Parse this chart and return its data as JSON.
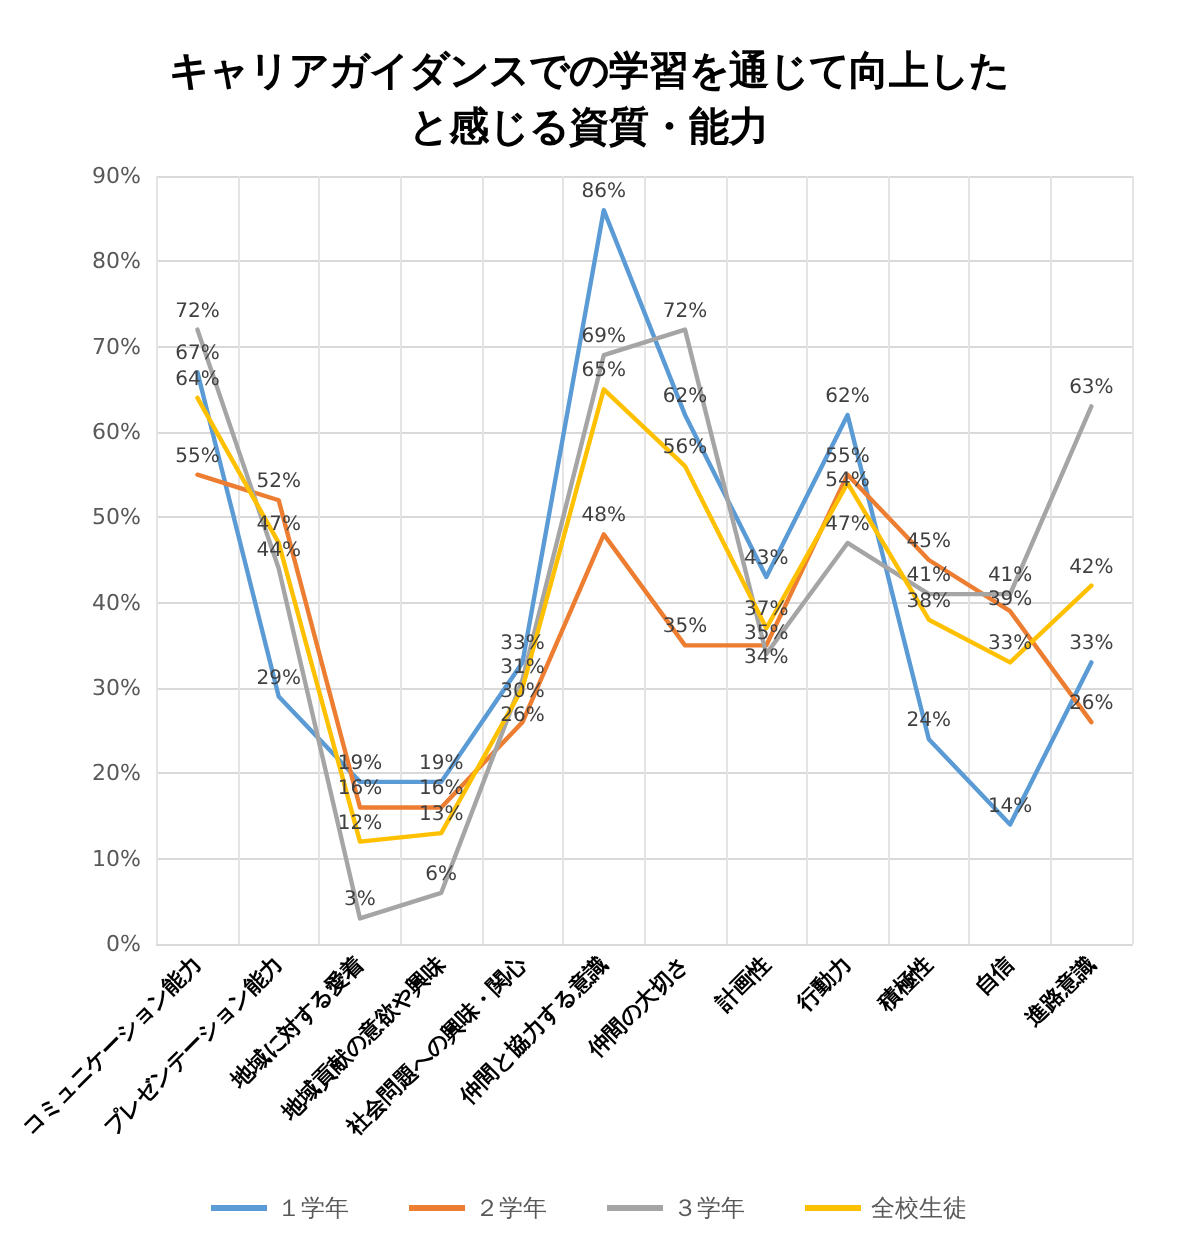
{
  "chart_data": {
    "type": "line",
    "title": "キャリアガイダンスでの学習を通じて向上したと感じる資質・能力",
    "categories": [
      "コミュニケーション能力",
      "プレゼンテーション能力",
      "地域に対する愛着",
      "地域貢献の意欲や興味",
      "社会問題への興味・関心",
      "仲間と協力する意識",
      "仲間の大切さ",
      "計画性",
      "行動力",
      "積極性",
      "自信",
      "進路意識"
    ],
    "series": [
      {
        "name": "１学年",
        "color": "#5b9bd5",
        "values": [
          67,
          29,
          19,
          19,
          33,
          86,
          62,
          43,
          62,
          24,
          14,
          33
        ],
        "value_labels": [
          "67%",
          "29%",
          "19%",
          "19%",
          "33%",
          "86%",
          "62%",
          "43%",
          "62%",
          "24%",
          "14%",
          "33%"
        ]
      },
      {
        "name": "２学年",
        "color": "#ed7d31",
        "values": [
          55,
          52,
          16,
          16,
          26,
          48,
          35,
          35,
          55,
          45,
          39,
          26
        ],
        "value_labels": [
          "55%",
          "52%",
          "16%",
          "16%",
          "26%",
          "48%",
          "35%",
          "35%",
          "55%",
          "45%",
          "39%",
          "26%"
        ]
      },
      {
        "name": "３学年",
        "color": "#a5a5a5",
        "values": [
          72,
          44,
          3,
          6,
          31,
          69,
          72,
          34,
          47,
          41,
          41,
          63
        ],
        "value_labels": [
          "72%",
          "44%",
          "3%",
          "6%",
          "31%",
          "69%",
          "72%",
          "34%",
          "47%",
          "41%",
          "41%",
          "63%"
        ]
      },
      {
        "name": "全校生徒",
        "color": "#ffc000",
        "values": [
          64,
          47,
          12,
          13,
          30,
          65,
          56,
          37,
          54,
          38,
          33,
          42
        ],
        "value_labels": [
          "64%",
          "47%",
          "12%",
          "13%",
          "30%",
          "65%",
          "56%",
          "37%",
          "54%",
          "38%",
          "33%",
          "42%"
        ]
      }
    ],
    "ylim": [
      0,
      90
    ],
    "yticks": [
      {
        "value": 0,
        "label": "0%"
      },
      {
        "value": 10,
        "label": "10%"
      },
      {
        "value": 20,
        "label": "20%"
      },
      {
        "value": 30,
        "label": "30%"
      },
      {
        "value": 40,
        "label": "40%"
      },
      {
        "value": 50,
        "label": "50%"
      },
      {
        "value": 60,
        "label": "60%"
      },
      {
        "value": 70,
        "label": "70%"
      },
      {
        "value": 80,
        "label": "80%"
      },
      {
        "value": 90,
        "label": "90%"
      }
    ],
    "grid": true,
    "legend": "bottom",
    "marker": "none",
    "line_style": "solid"
  }
}
